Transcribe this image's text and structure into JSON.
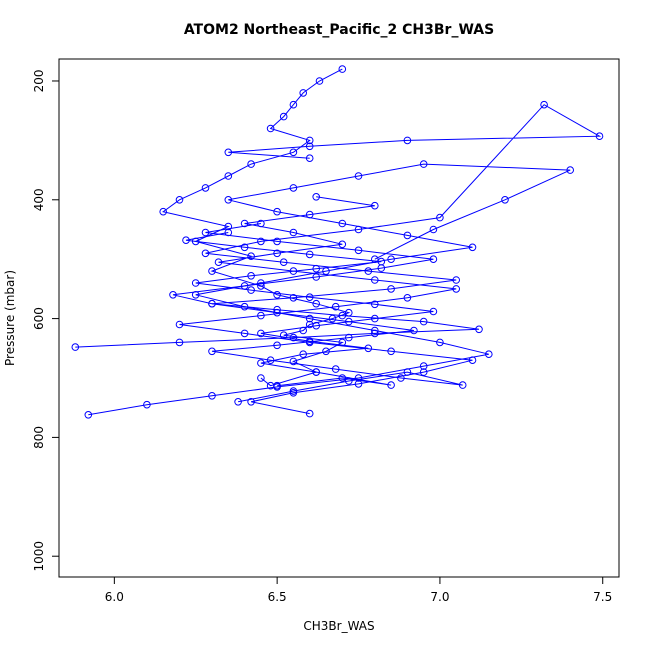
{
  "chart_data": {
    "type": "line",
    "title": "ATOM2 Northeast_Pacific_2 CH3Br_WAS",
    "xlabel": "CH3Br_WAS",
    "ylabel": "Pressure (mbar)",
    "xlim": [
      5.83,
      7.55
    ],
    "ylim": [
      1035,
      163
    ],
    "y_reversed": true,
    "x_ticks": [
      "6.0",
      "6.5",
      "7.0",
      "7.5"
    ],
    "x_tick_values": [
      6.0,
      6.5,
      7.0,
      7.5
    ],
    "y_ticks": [
      "200",
      "400",
      "600",
      "800",
      "1000"
    ],
    "y_tick_values": [
      200,
      400,
      600,
      800,
      1000
    ],
    "grid": false,
    "series": [
      {
        "color": "#0000ff",
        "marker": "open-circle",
        "x": [
          6.45,
          6.48,
          6.62,
          6.55,
          6.65,
          6.7,
          6.52,
          6.58,
          6.6,
          6.67,
          6.72,
          6.62,
          6.5,
          6.45,
          6.3,
          6.42,
          6.25,
          6.35,
          6.15,
          6.2,
          6.28,
          6.35,
          6.42,
          6.55,
          6.6,
          6.48,
          6.52,
          6.55,
          6.58,
          6.63,
          6.7
        ],
        "y": [
          700,
          713,
          690,
          672,
          655,
          640,
          628,
          620,
          610,
          600,
          590,
          575,
          560,
          545,
          520,
          495,
          470,
          445,
          420,
          400,
          380,
          360,
          340,
          320,
          300,
          280,
          260,
          240,
          220,
          200,
          180
        ]
      },
      {
        "color": "#0000ff",
        "marker": "open-circle",
        "x": [
          5.92,
          6.1,
          6.3,
          6.5,
          6.75,
          6.95,
          7.15,
          7.0,
          6.8,
          6.6,
          6.4,
          6.25,
          6.45,
          6.65,
          6.85,
          7.1,
          6.9,
          6.7,
          6.5,
          6.35,
          6.55,
          6.75,
          6.95,
          7.4,
          7.2,
          6.98,
          6.8
        ],
        "y": [
          762,
          745,
          730,
          715,
          700,
          680,
          660,
          640,
          620,
          600,
          580,
          560,
          540,
          520,
          500,
          480,
          460,
          440,
          420,
          400,
          380,
          360,
          340,
          350,
          400,
          450,
          500
        ]
      },
      {
        "color": "#0000ff",
        "marker": "open-circle",
        "x": [
          5.88,
          6.2,
          6.55,
          6.8,
          7.12,
          6.95,
          6.7,
          6.5,
          6.3,
          6.55,
          6.85,
          7.05,
          6.78,
          6.52,
          6.28,
          6.45,
          6.75,
          7.0,
          7.32,
          7.49,
          6.9,
          6.6,
          6.35,
          6.6
        ],
        "y": [
          648,
          640,
          632,
          625,
          618,
          605,
          595,
          585,
          575,
          565,
          550,
          535,
          520,
          505,
          490,
          470,
          450,
          430,
          240,
          293,
          300,
          310,
          320,
          330
        ]
      },
      {
        "color": "#0000ff",
        "marker": "open-circle",
        "x": [
          6.6,
          6.42,
          6.55,
          6.75,
          6.95,
          7.1,
          6.85,
          6.6,
          6.4,
          6.2,
          6.45,
          6.68,
          6.9,
          7.05,
          6.8,
          6.55,
          6.32,
          6.5,
          6.7,
          6.55,
          6.4,
          6.6,
          6.8,
          6.62
        ],
        "y": [
          760,
          740,
          725,
          710,
          690,
          670,
          655,
          640,
          625,
          610,
          595,
          580,
          565,
          550,
          535,
          520,
          505,
          490,
          475,
          455,
          440,
          425,
          410,
          395
        ]
      },
      {
        "color": "#0000ff",
        "marker": "open-circle",
        "x": [
          6.38,
          6.55,
          6.72,
          6.9,
          7.07,
          6.88,
          6.68,
          6.48,
          6.3,
          6.5,
          6.72,
          6.92,
          6.72,
          6.5,
          6.3,
          6.18,
          6.4,
          6.62,
          6.82,
          6.98,
          6.75,
          6.5,
          6.28,
          6.45
        ],
        "y": [
          740,
          722,
          705,
          690,
          712,
          700,
          685,
          670,
          655,
          645,
          632,
          620,
          605,
          590,
          575,
          560,
          545,
          530,
          515,
          500,
          485,
          470,
          455,
          440
        ]
      },
      {
        "color": "#0000ff",
        "marker": "open-circle",
        "x": [
          6.5,
          6.7,
          6.85,
          6.62,
          6.45,
          6.58,
          6.78,
          6.6,
          6.45,
          6.62,
          6.8,
          6.98,
          6.8,
          6.6,
          6.42,
          6.25,
          6.42,
          6.62,
          6.82,
          6.6,
          6.4,
          6.22,
          6.35
        ],
        "y": [
          713,
          700,
          712,
          690,
          675,
          660,
          650,
          638,
          625,
          612,
          600,
          588,
          576,
          564,
          552,
          540,
          528,
          516,
          504,
          492,
          480,
          468,
          455
        ]
      }
    ]
  }
}
